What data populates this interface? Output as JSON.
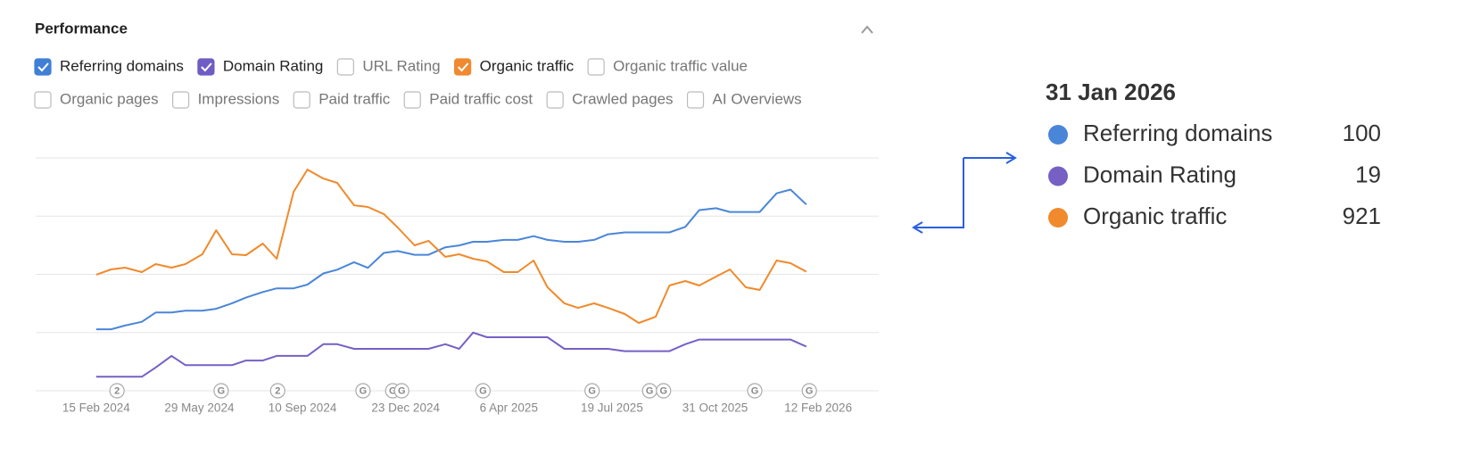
{
  "header": {
    "title": "Performance"
  },
  "metrics": [
    {
      "label": "Referring domains",
      "checked": true,
      "color": "#3f7fd6"
    },
    {
      "label": "Domain Rating",
      "checked": true,
      "color": "#6f5cc4"
    },
    {
      "label": "URL Rating",
      "checked": false
    },
    {
      "label": "Organic traffic",
      "checked": true,
      "color": "#f0892f"
    },
    {
      "label": "Organic traffic value",
      "checked": false
    },
    {
      "label": "Organic pages",
      "checked": false
    },
    {
      "label": "Impressions",
      "checked": false
    },
    {
      "label": "Paid traffic",
      "checked": false
    },
    {
      "label": "Paid traffic cost",
      "checked": false
    },
    {
      "label": "Crawled pages",
      "checked": false
    },
    {
      "label": "AI Overviews",
      "checked": false
    }
  ],
  "chart_data": {
    "type": "line",
    "grid": true,
    "xlim": [
      "16 Dec 2023",
      "14 Apr 2026"
    ],
    "xticks": [
      "15 Feb 2024",
      "29 May 2024",
      "10 Sep 2024",
      "23 Dec 2024",
      "6 Apr 2025",
      "19 Jul 2025",
      "31 Oct 2025",
      "12 Feb 2026"
    ],
    "x": [
      "15 Feb 2024",
      "1 Mar 2024",
      "15 Mar 2024",
      "1 Apr 2024",
      "15 Apr 2024",
      "1 May 2024",
      "15 May 2024",
      "1 Jun 2024",
      "15 Jun 2024",
      "1 Jul 2024",
      "15 Jul 2024",
      "1 Aug 2024",
      "15 Aug 2024",
      "1 Sep 2024",
      "15 Sep 2024",
      "1 Oct 2024",
      "15 Oct 2024",
      "1 Nov 2024",
      "15 Nov 2024",
      "1 Dec 2024",
      "15 Dec 2024",
      "1 Jan 2025",
      "15 Jan 2025",
      "1 Feb 2025",
      "15 Feb 2025",
      "1 Mar 2025",
      "15 Mar 2025",
      "1 Apr 2025",
      "15 Apr 2025",
      "1 May 2025",
      "15 May 2025",
      "1 Jun 2025",
      "15 Jun 2025",
      "1 Jul 2025",
      "15 Jul 2025",
      "1 Aug 2025",
      "15 Aug 2025",
      "1 Sep 2025",
      "15 Sep 2025",
      "1 Oct 2025",
      "15 Oct 2025",
      "1 Nov 2025",
      "15 Nov 2025",
      "1 Dec 2025",
      "15 Dec 2025",
      "1 Jan 2026",
      "15 Jan 2026",
      "31 Jan 2026"
    ],
    "series": [
      {
        "name": "Referring domains",
        "color": "#4a86d8",
        "ylim": [
          0,
          125
        ],
        "values": [
          33,
          33,
          35,
          37,
          42,
          42,
          43,
          43,
          44,
          47,
          50,
          53,
          55,
          55,
          57,
          63,
          65,
          69,
          66,
          74,
          75,
          73,
          73,
          77,
          78,
          80,
          80,
          81,
          81,
          83,
          81,
          80,
          80,
          81,
          84,
          85,
          85,
          85,
          85,
          88,
          97,
          98,
          96,
          96,
          96,
          106,
          108,
          100
        ]
      },
      {
        "name": "Domain Rating",
        "color": "#7660c4",
        "ylim": [
          0,
          100
        ],
        "values": [
          6,
          6,
          6,
          6,
          10,
          15,
          11,
          11,
          11,
          11,
          13,
          13,
          15,
          15,
          15,
          20,
          20,
          18,
          18,
          18,
          18,
          18,
          18,
          20,
          18,
          25,
          23,
          23,
          23,
          23,
          23,
          18,
          18,
          18,
          18,
          17,
          17,
          17,
          17,
          20,
          22,
          22,
          22,
          22,
          22,
          22,
          22,
          19
        ]
      },
      {
        "name": "Organic traffic",
        "color": "#f08a2c",
        "ylim": [
          0,
          1800
        ],
        "values": [
          897,
          938,
          952,
          917,
          979,
          952,
          979,
          1055,
          1241,
          1055,
          1048,
          1138,
          1021,
          1538,
          1710,
          1641,
          1607,
          1434,
          1421,
          1366,
          1262,
          1124,
          1159,
          1035,
          1055,
          1021,
          1000,
          917,
          917,
          1007,
          800,
          676,
          641,
          676,
          641,
          593,
          524,
          572,
          814,
          848,
          814,
          883,
          938,
          800,
          779,
          1007,
          986,
          921
        ]
      }
    ],
    "events": [
      {
        "x": "7 Mar 2024",
        "label": "2"
      },
      {
        "x": "20 Jun 2024",
        "label": "G"
      },
      {
        "x": "16 Aug 2024",
        "label": "2"
      },
      {
        "x": "10 Nov 2024",
        "label": "G"
      },
      {
        "x": "10 Dec 2024",
        "label": "G"
      },
      {
        "x": "19 Dec 2024",
        "label": "G"
      },
      {
        "x": "11 Mar 2025",
        "label": "G"
      },
      {
        "x": "29 Jun 2025",
        "label": "G"
      },
      {
        "x": "26 Aug 2025",
        "label": "G"
      },
      {
        "x": "9 Sep 2025",
        "label": "G"
      },
      {
        "x": "10 Dec 2025",
        "label": "G"
      },
      {
        "x": "3 Feb 2026",
        "label": "G"
      }
    ]
  },
  "tooltip": {
    "date": "31 Jan 2026",
    "rows": [
      {
        "name": "Referring domains",
        "value": 100,
        "color": "#4a86d8"
      },
      {
        "name": "Domain Rating",
        "value": 19,
        "color": "#7660c4"
      },
      {
        "name": "Organic traffic",
        "value": 921,
        "color": "#f08a2c"
      }
    ]
  }
}
